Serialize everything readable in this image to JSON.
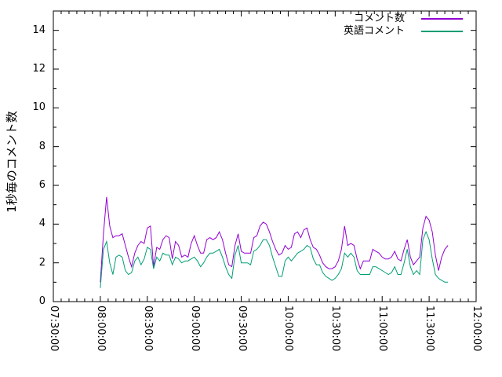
{
  "chart_data": {
    "type": "line",
    "title": "",
    "xlabel": "",
    "ylabel": "1秒毎のコメント数",
    "grid": false,
    "legend_position": "top-right-inside",
    "axis_color": "#000000",
    "background_color": "#ffffff",
    "ylim": [
      0,
      15
    ],
    "y_tick_labels": [
      "0",
      "2",
      "4",
      "6",
      "8",
      "10",
      "12",
      "14"
    ],
    "y_minor_tick_values": [
      1,
      3,
      5,
      7,
      9,
      11,
      13
    ],
    "x_axis": {
      "start": "07:30:00",
      "end": "12:00:00",
      "major_tick_minutes": 30,
      "minor_tick_minutes": 5
    },
    "x_tick_labels": [
      "07:30:00",
      "08:00:00",
      "08:30:00",
      "09:00:00",
      "09:30:00",
      "10:00:00",
      "10:30:00",
      "11:00:00",
      "11:30:00",
      "12:00:00"
    ],
    "data_start_time": "08:00:00",
    "data_step_seconds": 120,
    "series": [
      {
        "name": "コメント数",
        "color": "#9400d3",
        "values": [
          1.0,
          3.5,
          5.4,
          3.9,
          3.3,
          3.4,
          3.4,
          3.5,
          2.9,
          2.3,
          1.8,
          2.5,
          2.9,
          3.1,
          3.0,
          3.8,
          3.9,
          1.8,
          2.8,
          2.7,
          3.2,
          3.4,
          3.3,
          2.2,
          3.1,
          2.9,
          2.3,
          2.4,
          2.3,
          3.0,
          3.4,
          2.9,
          2.5,
          2.5,
          3.2,
          3.3,
          3.2,
          3.3,
          3.6,
          3.2,
          2.5,
          1.9,
          1.8,
          2.9,
          3.5,
          2.6,
          2.5,
          2.5,
          2.5,
          3.3,
          3.4,
          3.9,
          4.1,
          4.0,
          3.6,
          3.1,
          2.7,
          2.4,
          2.5,
          2.9,
          2.7,
          2.8,
          3.5,
          3.6,
          3.3,
          3.7,
          3.8,
          3.2,
          2.8,
          2.7,
          2.4,
          2.0,
          1.8,
          1.7,
          1.7,
          1.8,
          2.1,
          2.7,
          3.9,
          2.9,
          3.0,
          2.9,
          2.2,
          1.7,
          2.1,
          2.1,
          2.1,
          2.7,
          2.6,
          2.5,
          2.3,
          2.2,
          2.2,
          2.3,
          2.6,
          2.2,
          2.1,
          2.7,
          3.2,
          2.3,
          1.9,
          2.1,
          2.3,
          3.8,
          4.4,
          4.2,
          3.6,
          2.4,
          1.6,
          2.3,
          2.7,
          2.9
        ]
      },
      {
        "name": "英語コメント",
        "color": "#009e73",
        "values": [
          0.7,
          2.7,
          3.1,
          2.0,
          1.4,
          2.3,
          2.4,
          2.3,
          1.6,
          1.4,
          1.5,
          2.1,
          2.3,
          1.9,
          2.2,
          2.8,
          2.7,
          1.7,
          2.3,
          2.1,
          2.5,
          2.4,
          2.4,
          1.9,
          2.3,
          2.2,
          2.0,
          2.1,
          2.1,
          2.2,
          2.3,
          2.1,
          1.8,
          2.0,
          2.3,
          2.5,
          2.5,
          2.6,
          2.7,
          2.3,
          1.8,
          1.4,
          1.2,
          2.4,
          2.9,
          2.0,
          2.0,
          2.0,
          1.9,
          2.6,
          2.7,
          2.9,
          3.2,
          3.2,
          2.9,
          2.3,
          1.8,
          1.3,
          1.3,
          2.1,
          2.3,
          2.1,
          2.3,
          2.5,
          2.6,
          2.7,
          2.9,
          2.8,
          2.2,
          1.9,
          1.9,
          1.5,
          1.3,
          1.2,
          1.1,
          1.2,
          1.4,
          1.7,
          2.5,
          2.3,
          2.5,
          2.3,
          1.6,
          1.4,
          1.4,
          1.4,
          1.4,
          1.8,
          1.8,
          1.7,
          1.6,
          1.5,
          1.4,
          1.5,
          1.8,
          1.4,
          1.4,
          2.0,
          2.7,
          1.8,
          1.4,
          1.6,
          1.4,
          3.2,
          3.6,
          3.2,
          2.2,
          1.4,
          1.2,
          1.1,
          1.0,
          1.0
        ]
      }
    ]
  }
}
